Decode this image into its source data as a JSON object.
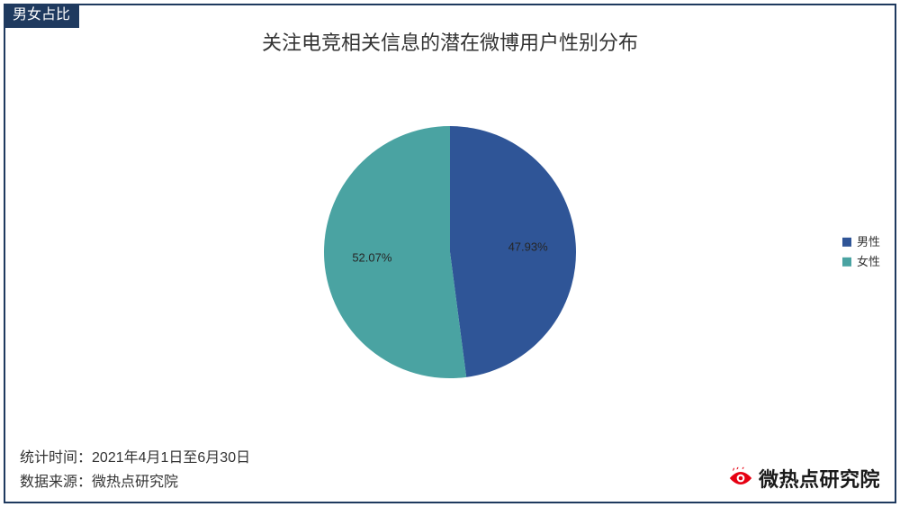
{
  "badge": "男女占比",
  "title": "关注电竞相关信息的潜在微博用户性别分布",
  "chart": {
    "type": "pie",
    "radius": 140,
    "start_angle_deg": -90,
    "background_color": "#ffffff",
    "slices": [
      {
        "key": "male",
        "label": "男性",
        "value": 47.93,
        "color": "#2f5597",
        "data_label": "47.93%"
      },
      {
        "key": "female",
        "label": "女性",
        "value": 52.07,
        "color": "#4aa3a2",
        "data_label": "52.07%"
      }
    ],
    "label_fontsize": 13,
    "label_color": "#262626",
    "legend": {
      "position": "right",
      "swatch_size": 10,
      "fontsize": 13
    }
  },
  "footer": {
    "line1_prefix": "统计时间：",
    "line1_value": "2021年4月1日至6月30日",
    "line2_prefix": "数据来源：",
    "line2_value": "微热点研究院"
  },
  "logo": {
    "text": "微热点研究院",
    "mark_color": "#e60012"
  }
}
